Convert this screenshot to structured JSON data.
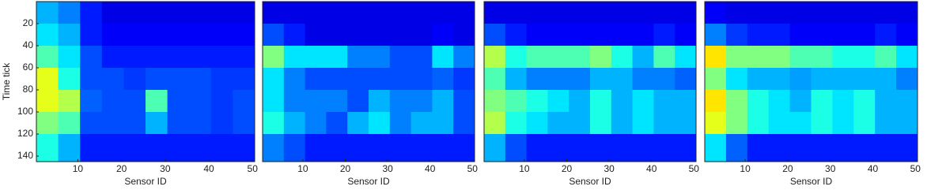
{
  "chart_data": [
    {
      "type": "heatmap",
      "x_label": "Sensor ID",
      "y_label": "Time tick",
      "xlim": [
        0.5,
        50.5
      ],
      "ylim": [
        0,
        145
      ],
      "xticks": [
        10,
        20,
        30,
        40,
        50
      ],
      "yticks": [
        20,
        40,
        60,
        80,
        100,
        120,
        140
      ],
      "x_edges": [
        0.5,
        5.5,
        10.5,
        15.5,
        20.5,
        25.5,
        30.5,
        35.5,
        40.5,
        45.5,
        50.5
      ],
      "y_edges": [
        0,
        20,
        40,
        60,
        80,
        100,
        120,
        145
      ],
      "clim": [
        0,
        1
      ],
      "z": [
        [
          0.3,
          0.25,
          0.15,
          0.1,
          0.1,
          0.1,
          0.1,
          0.1,
          0.1,
          0.1
        ],
        [
          0.35,
          0.3,
          0.15,
          0.12,
          0.12,
          0.12,
          0.12,
          0.12,
          0.12,
          0.12
        ],
        [
          0.45,
          0.35,
          0.2,
          0.15,
          0.15,
          0.15,
          0.15,
          0.15,
          0.15,
          0.15
        ],
        [
          0.6,
          0.4,
          0.2,
          0.2,
          0.18,
          0.2,
          0.2,
          0.2,
          0.18,
          0.18
        ],
        [
          0.6,
          0.55,
          0.22,
          0.2,
          0.2,
          0.45,
          0.2,
          0.2,
          0.18,
          0.2
        ],
        [
          0.5,
          0.45,
          0.2,
          0.2,
          0.2,
          0.3,
          0.2,
          0.2,
          0.18,
          0.2
        ],
        [
          0.4,
          0.3,
          0.15,
          0.15,
          0.15,
          0.15,
          0.15,
          0.15,
          0.15,
          0.15
        ]
      ]
    },
    {
      "type": "heatmap",
      "x_label": "Sensor ID",
      "xlim": [
        0.5,
        50.5
      ],
      "ylim": [
        0,
        145
      ],
      "xticks": [
        10,
        20,
        30,
        40,
        50
      ],
      "x_edges": [
        0.5,
        5.5,
        10.5,
        15.5,
        20.5,
        25.5,
        30.5,
        35.5,
        40.5,
        45.5,
        50.5
      ],
      "y_edges": [
        0,
        20,
        40,
        60,
        80,
        100,
        120,
        145
      ],
      "clim": [
        0,
        1
      ],
      "z": [
        [
          0.1,
          0.1,
          0.1,
          0.1,
          0.1,
          0.1,
          0.1,
          0.1,
          0.1,
          0.1
        ],
        [
          0.2,
          0.15,
          0.1,
          0.1,
          0.1,
          0.1,
          0.1,
          0.1,
          0.12,
          0.1
        ],
        [
          0.5,
          0.35,
          0.35,
          0.35,
          0.25,
          0.25,
          0.2,
          0.2,
          0.35,
          0.25
        ],
        [
          0.35,
          0.25,
          0.2,
          0.2,
          0.2,
          0.2,
          0.2,
          0.2,
          0.22,
          0.18
        ],
        [
          0.35,
          0.25,
          0.25,
          0.25,
          0.2,
          0.3,
          0.25,
          0.25,
          0.3,
          0.2
        ],
        [
          0.4,
          0.3,
          0.25,
          0.2,
          0.3,
          0.35,
          0.25,
          0.3,
          0.3,
          0.2
        ],
        [
          0.25,
          0.2,
          0.15,
          0.15,
          0.15,
          0.15,
          0.15,
          0.15,
          0.15,
          0.15
        ]
      ]
    },
    {
      "type": "heatmap",
      "x_label": "Sensor ID",
      "xlim": [
        0.5,
        50.5
      ],
      "ylim": [
        0,
        145
      ],
      "xticks": [
        10,
        20,
        30,
        40,
        50
      ],
      "x_edges": [
        0.5,
        5.5,
        10.5,
        15.5,
        20.5,
        25.5,
        30.5,
        35.5,
        40.5,
        45.5,
        50.5
      ],
      "y_edges": [
        0,
        20,
        40,
        60,
        80,
        100,
        120,
        145
      ],
      "clim": [
        0,
        1
      ],
      "z": [
        [
          0.1,
          0.1,
          0.1,
          0.1,
          0.1,
          0.1,
          0.1,
          0.1,
          0.1,
          0.1
        ],
        [
          0.2,
          0.15,
          0.12,
          0.12,
          0.12,
          0.12,
          0.12,
          0.12,
          0.15,
          0.12
        ],
        [
          0.55,
          0.4,
          0.45,
          0.45,
          0.45,
          0.5,
          0.4,
          0.3,
          0.45,
          0.35
        ],
        [
          0.45,
          0.3,
          0.25,
          0.25,
          0.25,
          0.3,
          0.3,
          0.25,
          0.25,
          0.22
        ],
        [
          0.5,
          0.45,
          0.4,
          0.35,
          0.3,
          0.4,
          0.3,
          0.35,
          0.3,
          0.3
        ],
        [
          0.55,
          0.4,
          0.35,
          0.3,
          0.3,
          0.4,
          0.3,
          0.35,
          0.3,
          0.3
        ],
        [
          0.3,
          0.2,
          0.15,
          0.15,
          0.15,
          0.15,
          0.15,
          0.15,
          0.15,
          0.15
        ]
      ]
    },
    {
      "type": "heatmap",
      "x_label": "Sensor ID",
      "xlim": [
        0.5,
        50.5
      ],
      "ylim": [
        0,
        145
      ],
      "xticks": [
        10,
        20,
        30,
        40,
        50
      ],
      "x_edges": [
        0.5,
        5.5,
        10.5,
        15.5,
        20.5,
        25.5,
        30.5,
        35.5,
        40.5,
        45.5,
        50.5
      ],
      "y_edges": [
        0,
        20,
        40,
        60,
        80,
        100,
        120,
        145
      ],
      "clim": [
        0,
        1
      ],
      "z": [
        [
          0.12,
          0.1,
          0.1,
          0.1,
          0.1,
          0.1,
          0.1,
          0.1,
          0.1,
          0.1
        ],
        [
          0.25,
          0.18,
          0.15,
          0.15,
          0.12,
          0.12,
          0.12,
          0.12,
          0.15,
          0.12
        ],
        [
          0.65,
          0.5,
          0.5,
          0.5,
          0.45,
          0.45,
          0.4,
          0.4,
          0.45,
          0.35
        ],
        [
          0.5,
          0.35,
          0.3,
          0.3,
          0.28,
          0.3,
          0.3,
          0.3,
          0.3,
          0.25
        ],
        [
          0.65,
          0.5,
          0.4,
          0.35,
          0.3,
          0.4,
          0.35,
          0.4,
          0.3,
          0.3
        ],
        [
          0.6,
          0.5,
          0.4,
          0.35,
          0.35,
          0.4,
          0.35,
          0.4,
          0.3,
          0.3
        ],
        [
          0.35,
          0.22,
          0.15,
          0.15,
          0.15,
          0.15,
          0.15,
          0.15,
          0.15,
          0.15
        ]
      ]
    }
  ]
}
